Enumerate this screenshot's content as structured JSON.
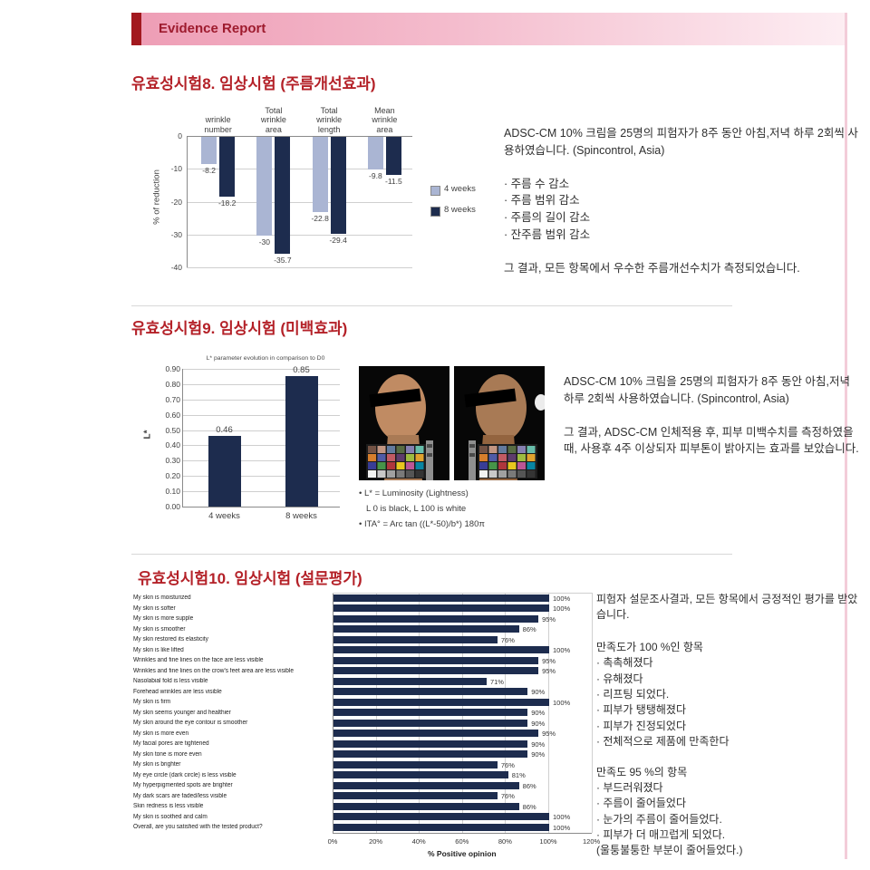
{
  "banner": {
    "title": "Evidence Report"
  },
  "colors": {
    "accent_red": "#a2191f",
    "title_red": "#b42128",
    "navy": "#1d2c4e",
    "periwinkle": "#aab5d3",
    "banner_pink": "#ee9db5"
  },
  "section8": {
    "title": "유효성시험8. 임상시험 (주름개선효과)",
    "description": "ADSC-CM 10% 크림을 25명의 피험자가 8주 동안 아침,저녁 하루 2회씩 사용하였습니다. (Spincontrol, Asia)",
    "bullets": [
      "· 주름 수 감소",
      "· 주름 범위 감소",
      "· 주름의 길이 감소",
      "· 잔주름 범위 감소"
    ],
    "conclusion": "그 결과, 모든 항목에서 우수한 주름개선수치가 측정되었습니다."
  },
  "section9": {
    "title": "유효성시험9. 임상시험 (미백효과)",
    "description": "ADSC-CM 10% 크림을 25명의 피험자가 8주 동안 아침,저녁 하루 2회씩 사용하였습니다. (Spincontrol, Asia)",
    "conclusion": "그 결과, ADSC-CM 인체적용 후, 피부 미백수치를 측정하였을 때,  사용후 4주 이상되자 피부톤이 밝아지는 효과를 보았습니다.",
    "photo_notes": [
      "• L* = Luminosity (Lightness)",
      "L 0 is black, L 100 is white",
      "• ITA° = Arc tan ((L*-50)/b*) 180π"
    ]
  },
  "section10": {
    "title": "유효성시험10. 임상시험 (설문평가)",
    "intro": "피험자 설문조사결과, 모든 항목에서 긍정적인 평가를 받았습니다.",
    "group100_header": "만족도가 100 %인 항목",
    "group100_items": [
      "· 촉촉해졌다",
      "· 유해졌다",
      "· 리프팅 되었다.",
      "· 피부가 탱탱해졌다",
      "· 피부가 진정되었다",
      "· 전체적으로 제품에 만족한다"
    ],
    "group95_header": "만족도 95 %의 항목",
    "group95_items": [
      "· 부드러워졌다",
      "· 주름이 줄어들었다",
      "· 눈가의 주름이 줄어들었다.",
      "· 피부가 더 매끄럽게 되었다.",
      "(울퉁불퉁한 부분이 줄어들었다.)"
    ]
  },
  "chart_data": [
    {
      "type": "bar",
      "title": "",
      "categories": [
        "wrinkle\nnumber",
        "Total\nwrinkle\narea",
        "Total\nwrinkle\nlength",
        "Mean\nwrinkle\narea"
      ],
      "series": [
        {
          "name": "4 weeks",
          "color": "#aab5d3",
          "values": [
            -8.2,
            -30,
            -22.8,
            -9.8
          ]
        },
        {
          "name": "8 weeks",
          "color": "#1d2c4e",
          "values": [
            -18.2,
            -35.7,
            -29.4,
            -11.5
          ]
        }
      ],
      "xlabel": "",
      "ylabel": "% of reduction",
      "ylim": [
        -40,
        0
      ],
      "yticks": [
        0,
        -10,
        -20,
        -30,
        -40
      ],
      "grid": true,
      "legend_position": "right"
    },
    {
      "type": "bar",
      "title": "L* parameter evolution in comparison to D0",
      "categories": [
        "4 weeks",
        "8 weeks"
      ],
      "values": [
        0.46,
        0.85
      ],
      "bar_color": "#1d2c4e",
      "xlabel": "",
      "ylabel": "L*",
      "ylim": [
        0,
        0.9
      ],
      "yticks": [
        0.0,
        0.1,
        0.2,
        0.3,
        0.4,
        0.5,
        0.6,
        0.7,
        0.8,
        0.9
      ],
      "grid": true
    },
    {
      "type": "bar",
      "orientation": "horizontal",
      "title": "",
      "categories": [
        "My skin is moisturized",
        "My skin is softer",
        "My skin is more supple",
        "My skin is smoother",
        "My skin restored its elasticity",
        "My skin is like lifted",
        "Wrinkles and fine lines on the face are less visible",
        "Wrinkles and fine lines on the crow's feet area are less visible",
        "Nasolabial fold is less visible",
        "Forehead wrinkles are less visible",
        "My skin is firm",
        "My skin seems younger and healthier",
        "My skin around the eye contour is smoother",
        "My skin is more even",
        "My facial pores are tightened",
        "My skin tone is more even",
        "My skin is brighter",
        "My eye circle (dark circle) is less visible",
        "My hyperpigmented spots are brighter",
        "My dark scars are faded/less visible",
        "Skin redness is less visible",
        "My skin is soothed and calm",
        "Overall, are you satisfied with the tested product?"
      ],
      "values": [
        100,
        100,
        95,
        86,
        76,
        100,
        95,
        95,
        71,
        90,
        100,
        90,
        90,
        95,
        90,
        90,
        76,
        81,
        86,
        76,
        86,
        100,
        100
      ],
      "bar_color": "#1d2c4e",
      "xlabel": "% Positive opinion",
      "xlim": [
        0,
        120
      ],
      "xticks": [
        "0%",
        "20%",
        "40%",
        "60%",
        "80%",
        "100%",
        "120%"
      ],
      "grid": true
    }
  ]
}
